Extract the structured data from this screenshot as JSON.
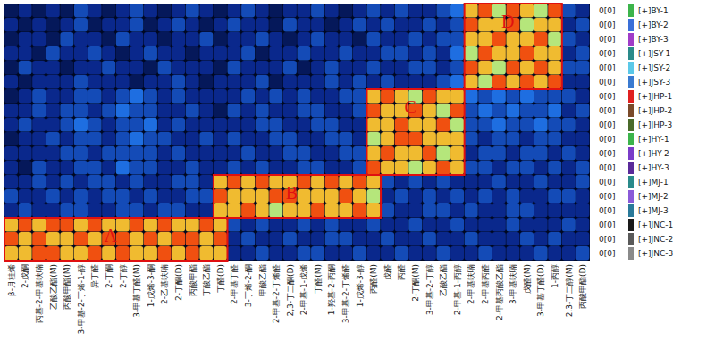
{
  "chart_data": {
    "type": "heatmap",
    "categories": [
      "β-月桂烯",
      "2-戊酮",
      "丙基-2-甲基呋喃",
      "乙酸乙酯(M)",
      "丙酸甲酯(M)",
      "3-甲基-2-丁烯-1-醇",
      "异丁醛",
      "2-丁酮",
      "2-丁醇",
      "3-甲基丁醛(M)",
      "1-戊烯-3-酮",
      "2-乙基呋喃",
      "2-丁酮(D)",
      "丙酸甲酯",
      "丁酸乙酯",
      "丁醛(D)",
      "2-甲基丁醛",
      "3-丁烯-2-酮",
      "甲酸乙酯",
      "2-甲基-2-丁烯醛",
      "2,3-丁二酮(D)",
      "2-甲基-1-戊烯",
      "丁醛(M)",
      "1-羟基-2-丙酮",
      "3-甲基-2-丁烯醛",
      "1-戊烯-3-醇",
      "丙醛(M)",
      "戊醛",
      "丙醛",
      "2-丁酮(M)",
      "3-甲基-2-丁醇",
      "乙酸乙酯",
      "2-甲基-1-丙醇",
      "2-甲基呋喃",
      "2-甲基丙醛",
      "2-甲基丙酸乙酯",
      "3-甲基呋喃",
      "戊醛(M)",
      "3-甲基丁醛(D)",
      "1-丙醇",
      "2,3-丁二醇(M)",
      "丙酸甲酯(D)"
    ],
    "rows": [
      "[+]BY-1",
      "[+]BY-2",
      "[+]BY-3",
      "[+]JSY-1",
      "[+]JSY-2",
      "[+]JSY-3",
      "[+]JHP-1",
      "[+]JHP-2",
      "[+]JHP-3",
      "[+]HY-1",
      "[+]HY-2",
      "[+]HY-3",
      "[+]MJ-1",
      "[+]MJ-2",
      "[+]MJ-3",
      "[+]JNC-1",
      "[+]JNC-2",
      "[+]JNC-3"
    ],
    "row_notes": [
      "0[0]",
      "0[0]",
      "0[0]",
      "0[0]",
      "0[0]",
      "0[0]",
      "0[0]",
      "0[0]",
      "0[0]",
      "0[0]",
      "0[0]",
      "0[0]",
      "0[0]",
      "0[0]",
      "0[0]",
      "0[0]",
      "0[0]",
      "0[0]"
    ],
    "row_colors": [
      "#3cb44b",
      "#3a6fd8",
      "#a03cc8",
      "#2a8a8a",
      "#5bc8e8",
      "#3a7ad0",
      "#e02020",
      "#7a4a2a",
      "#4a6a2a",
      "#3cb44b",
      "#7a3cc8",
      "#5a2a9a",
      "#2a8a8a",
      "#8a5ad8",
      "#2a7a9a",
      "#1a1a1a",
      "#5a5a5a",
      "#8a8a8a"
    ],
    "color_range": [
      0,
      10
    ],
    "cells": [
      [
        1,
        2,
        1,
        2,
        1,
        3,
        2,
        1,
        2,
        3,
        2,
        1,
        2,
        3,
        2,
        1,
        2,
        3,
        2,
        1,
        2,
        2,
        3,
        2,
        1,
        2,
        3,
        2,
        3,
        2,
        2,
        3,
        4,
        8,
        9,
        7,
        9,
        8,
        7,
        9,
        3,
        2
      ],
      [
        2,
        1,
        2,
        1,
        2,
        3,
        1,
        2,
        2,
        3,
        1,
        2,
        3,
        2,
        1,
        2,
        3,
        2,
        2,
        1,
        3,
        2,
        2,
        1,
        2,
        3,
        2,
        3,
        2,
        2,
        3,
        2,
        3,
        9,
        8,
        8,
        9,
        7,
        8,
        8,
        2,
        3
      ],
      [
        1,
        2,
        2,
        1,
        3,
        2,
        2,
        1,
        3,
        2,
        2,
        1,
        2,
        2,
        3,
        1,
        2,
        2,
        3,
        2,
        1,
        2,
        3,
        2,
        2,
        1,
        3,
        2,
        2,
        3,
        2,
        3,
        3,
        8,
        8,
        9,
        8,
        8,
        9,
        7,
        3,
        2
      ],
      [
        2,
        2,
        1,
        3,
        2,
        2,
        3,
        2,
        1,
        2,
        3,
        2,
        2,
        1,
        2,
        2,
        2,
        3,
        1,
        2,
        2,
        3,
        2,
        2,
        3,
        2,
        2,
        3,
        3,
        2,
        3,
        2,
        4,
        7,
        9,
        8,
        8,
        9,
        8,
        8,
        2,
        3
      ],
      [
        1,
        3,
        2,
        2,
        1,
        2,
        2,
        3,
        2,
        2,
        1,
        3,
        2,
        2,
        2,
        1,
        3,
        2,
        2,
        2,
        3,
        1,
        2,
        3,
        2,
        2,
        3,
        2,
        2,
        3,
        3,
        2,
        3,
        9,
        8,
        7,
        9,
        8,
        9,
        8,
        3,
        3
      ],
      [
        2,
        1,
        2,
        2,
        2,
        3,
        2,
        2,
        2,
        1,
        2,
        2,
        3,
        2,
        1,
        2,
        2,
        2,
        3,
        1,
        2,
        2,
        2,
        3,
        2,
        3,
        2,
        3,
        2,
        2,
        2,
        3,
        4,
        8,
        7,
        9,
        8,
        9,
        8,
        9,
        2,
        2
      ],
      [
        1,
        2,
        3,
        2,
        2,
        3,
        3,
        2,
        3,
        4,
        3,
        2,
        3,
        2,
        2,
        2,
        2,
        3,
        2,
        3,
        2,
        3,
        2,
        2,
        3,
        3,
        8,
        9,
        8,
        7,
        9,
        8,
        8,
        4,
        3,
        4,
        3,
        4,
        3,
        3,
        3,
        2
      ],
      [
        2,
        2,
        3,
        2,
        3,
        3,
        2,
        3,
        4,
        3,
        3,
        2,
        2,
        3,
        2,
        1,
        3,
        2,
        3,
        2,
        2,
        3,
        3,
        2,
        2,
        3,
        9,
        8,
        8,
        9,
        8,
        7,
        9,
        3,
        4,
        3,
        4,
        3,
        3,
        4,
        2,
        3
      ],
      [
        2,
        3,
        2,
        2,
        3,
        4,
        3,
        2,
        3,
        3,
        4,
        2,
        3,
        2,
        2,
        2,
        2,
        2,
        3,
        3,
        2,
        2,
        3,
        3,
        2,
        2,
        8,
        8,
        9,
        8,
        8,
        9,
        7,
        3,
        3,
        4,
        3,
        3,
        4,
        3,
        3,
        2
      ],
      [
        1,
        2,
        2,
        3,
        2,
        3,
        3,
        2,
        3,
        4,
        3,
        3,
        2,
        2,
        3,
        2,
        3,
        2,
        2,
        3,
        3,
        2,
        2,
        3,
        3,
        2,
        7,
        8,
        9,
        9,
        8,
        8,
        8,
        3,
        2,
        3,
        3,
        2,
        3,
        3,
        2,
        2
      ],
      [
        2,
        2,
        2,
        2,
        3,
        3,
        2,
        3,
        3,
        3,
        3,
        2,
        3,
        2,
        2,
        2,
        2,
        3,
        2,
        2,
        3,
        3,
        2,
        2,
        3,
        3,
        8,
        9,
        8,
        8,
        9,
        7,
        8,
        2,
        3,
        3,
        2,
        3,
        3,
        2,
        3,
        2
      ],
      [
        2,
        1,
        3,
        2,
        2,
        3,
        3,
        2,
        4,
        3,
        3,
        2,
        2,
        3,
        2,
        2,
        3,
        2,
        3,
        2,
        2,
        3,
        3,
        2,
        2,
        3,
        9,
        8,
        8,
        7,
        8,
        9,
        8,
        3,
        3,
        2,
        3,
        3,
        2,
        3,
        2,
        3
      ],
      [
        2,
        2,
        3,
        2,
        3,
        2,
        3,
        3,
        2,
        3,
        2,
        2,
        3,
        3,
        2,
        8,
        9,
        8,
        9,
        8,
        8,
        9,
        8,
        9,
        8,
        9,
        8,
        3,
        2,
        3,
        2,
        3,
        2,
        2,
        2,
        3,
        2,
        2,
        3,
        2,
        2,
        3
      ],
      [
        3,
        2,
        2,
        3,
        2,
        3,
        2,
        3,
        3,
        2,
        3,
        2,
        2,
        3,
        3,
        9,
        8,
        8,
        8,
        9,
        9,
        8,
        8,
        8,
        9,
        8,
        7,
        2,
        3,
        2,
        3,
        2,
        3,
        2,
        3,
        2,
        3,
        2,
        2,
        3,
        3,
        2
      ],
      [
        2,
        3,
        2,
        2,
        3,
        3,
        2,
        2,
        3,
        3,
        2,
        3,
        3,
        2,
        2,
        8,
        8,
        9,
        8,
        7,
        8,
        8,
        9,
        8,
        8,
        9,
        8,
        3,
        2,
        2,
        3,
        3,
        2,
        3,
        2,
        2,
        3,
        3,
        2,
        2,
        2,
        2
      ],
      [
        8,
        9,
        8,
        9,
        9,
        8,
        9,
        8,
        8,
        9,
        8,
        9,
        8,
        8,
        9,
        8,
        3,
        2,
        3,
        2,
        2,
        3,
        2,
        3,
        2,
        2,
        3,
        2,
        2,
        3,
        2,
        2,
        3,
        2,
        2,
        2,
        3,
        2,
        2,
        2,
        3,
        2
      ],
      [
        9,
        8,
        9,
        8,
        8,
        9,
        8,
        9,
        9,
        8,
        9,
        8,
        9,
        9,
        8,
        9,
        2,
        3,
        2,
        2,
        3,
        2,
        2,
        3,
        3,
        2,
        2,
        3,
        2,
        2,
        3,
        2,
        2,
        3,
        2,
        2,
        2,
        3,
        2,
        3,
        2,
        2
      ],
      [
        8,
        8,
        9,
        9,
        8,
        8,
        9,
        8,
        9,
        8,
        8,
        9,
        8,
        9,
        8,
        8,
        2,
        2,
        3,
        2,
        2,
        3,
        3,
        2,
        2,
        3,
        2,
        2,
        3,
        2,
        2,
        3,
        2,
        2,
        3,
        2,
        2,
        2,
        3,
        2,
        2,
        3
      ]
    ],
    "regions": [
      {
        "label": "A",
        "rows": [
          15,
          17
        ],
        "cols": [
          0,
          15
        ]
      },
      {
        "label": "B",
        "rows": [
          12,
          14
        ],
        "cols": [
          15,
          26
        ]
      },
      {
        "label": "C",
        "rows": [
          6,
          11
        ],
        "cols": [
          26,
          32
        ]
      },
      {
        "label": "D",
        "rows": [
          0,
          5
        ],
        "cols": [
          33,
          39
        ]
      }
    ]
  }
}
